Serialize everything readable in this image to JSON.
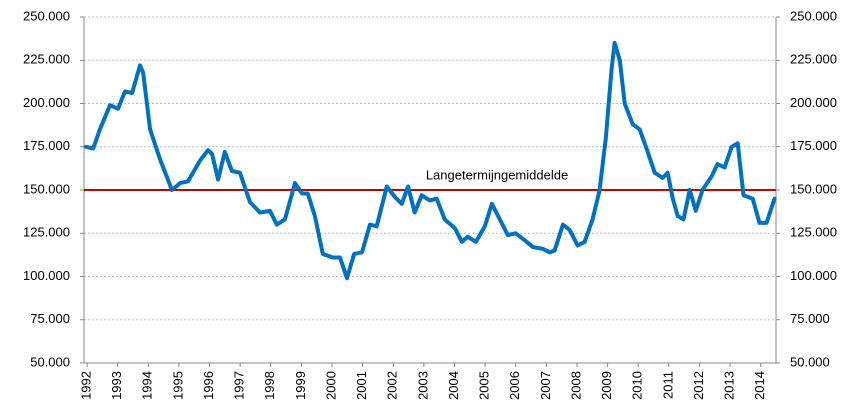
{
  "chart_data": {
    "type": "line",
    "x": [
      1991.97,
      1992.2,
      1992.42,
      1992.75,
      1993.01,
      1993.24,
      1993.47,
      1993.73,
      1993.83,
      1994.06,
      1994.38,
      1994.77,
      1995.04,
      1995.3,
      1995.69,
      1995.95,
      1996.08,
      1996.28,
      1996.5,
      1996.73,
      1996.99,
      1997.32,
      1997.65,
      1997.97,
      1998.2,
      1998.46,
      1998.79,
      1999.02,
      1999.21,
      1999.44,
      1999.7,
      2000.03,
      2000.26,
      2000.49,
      2000.72,
      2000.98,
      2001.24,
      2001.46,
      2001.79,
      2002.05,
      2002.28,
      2002.48,
      2002.7,
      2002.93,
      2003.19,
      2003.42,
      2003.68,
      2004.01,
      2004.24,
      2004.43,
      2004.7,
      2004.99,
      2005.22,
      2005.48,
      2005.74,
      2006.0,
      2006.29,
      2006.56,
      2006.88,
      2007.11,
      2007.27,
      2007.54,
      2007.76,
      2008.02,
      2008.25,
      2008.51,
      2008.74,
      2008.94,
      2009.13,
      2009.23,
      2009.4,
      2009.56,
      2009.82,
      2010.05,
      2010.31,
      2010.54,
      2010.8,
      2010.96,
      2011.13,
      2011.29,
      2011.48,
      2011.68,
      2011.88,
      2012.1,
      2012.4,
      2012.59,
      2012.82,
      2013.05,
      2013.25,
      2013.44,
      2013.74,
      2013.96,
      2014.19,
      2014.45
    ],
    "series": [
      {
        "color": "#0070c0",
        "values": [
          175000,
          174000,
          185000,
          199000,
          197000,
          207000,
          206000,
          222000,
          218000,
          185000,
          168000,
          150000,
          154000,
          155000,
          167000,
          173000,
          171000,
          156000,
          172000,
          161000,
          160000,
          143000,
          137000,
          138000,
          130000,
          133000,
          154000,
          148000,
          148000,
          135000,
          113000,
          111000,
          111000,
          99000,
          113000,
          114000,
          130000,
          129000,
          152000,
          146000,
          142000,
          152000,
          137000,
          147000,
          144000,
          145000,
          133000,
          128000,
          120000,
          123000,
          120000,
          129000,
          142000,
          133000,
          124000,
          125000,
          121000,
          117000,
          116000,
          114000,
          115000,
          130000,
          127000,
          118000,
          120000,
          133000,
          150000,
          180000,
          220000,
          235000,
          225000,
          200000,
          188000,
          185000,
          172000,
          160000,
          157000,
          160000,
          145000,
          135000,
          133000,
          150000,
          138000,
          150000,
          158000,
          165000,
          163000,
          175000,
          177000,
          147000,
          145000,
          131000,
          131000,
          145000
        ]
      }
    ],
    "reference_line": {
      "value": 150000,
      "label": "Langetermijngemiddelde",
      "color": "#c00000"
    },
    "xlim": [
      1991.9,
      2014.5
    ],
    "xticks": [
      1992,
      1993,
      1994,
      1995,
      1996,
      1997,
      1998,
      1999,
      2000,
      2001,
      2002,
      2003,
      2004,
      2005,
      2006,
      2007,
      2008,
      2009,
      2010,
      2011,
      2012,
      2013,
      2014
    ],
    "ylim": [
      50000,
      250000
    ],
    "yticks": [
      {
        "value": 50000,
        "label": "50.000"
      },
      {
        "value": 75000,
        "label": "75.000"
      },
      {
        "value": 100000,
        "label": "100.000"
      },
      {
        "value": 125000,
        "label": "125.000"
      },
      {
        "value": 150000,
        "label": "150.000"
      },
      {
        "value": 175000,
        "label": "175.000"
      },
      {
        "value": 200000,
        "label": "200.000"
      },
      {
        "value": 225000,
        "label": "225.000"
      },
      {
        "value": 250000,
        "label": "250.000"
      }
    ],
    "y2lim": [
      50000,
      250000
    ],
    "y2ticks": [
      {
        "value": 50000,
        "label": "50.000"
      },
      {
        "value": 75000,
        "label": "75.000"
      },
      {
        "value": 100000,
        "label": "100.000"
      },
      {
        "value": 125000,
        "label": "125.000"
      },
      {
        "value": 150000,
        "label": "150.000"
      },
      {
        "value": 175000,
        "label": "175.000"
      },
      {
        "value": 200000,
        "label": "200.000"
      },
      {
        "value": 225000,
        "label": "225.000"
      },
      {
        "value": 250000,
        "label": "250.000"
      }
    ],
    "grid": true
  }
}
